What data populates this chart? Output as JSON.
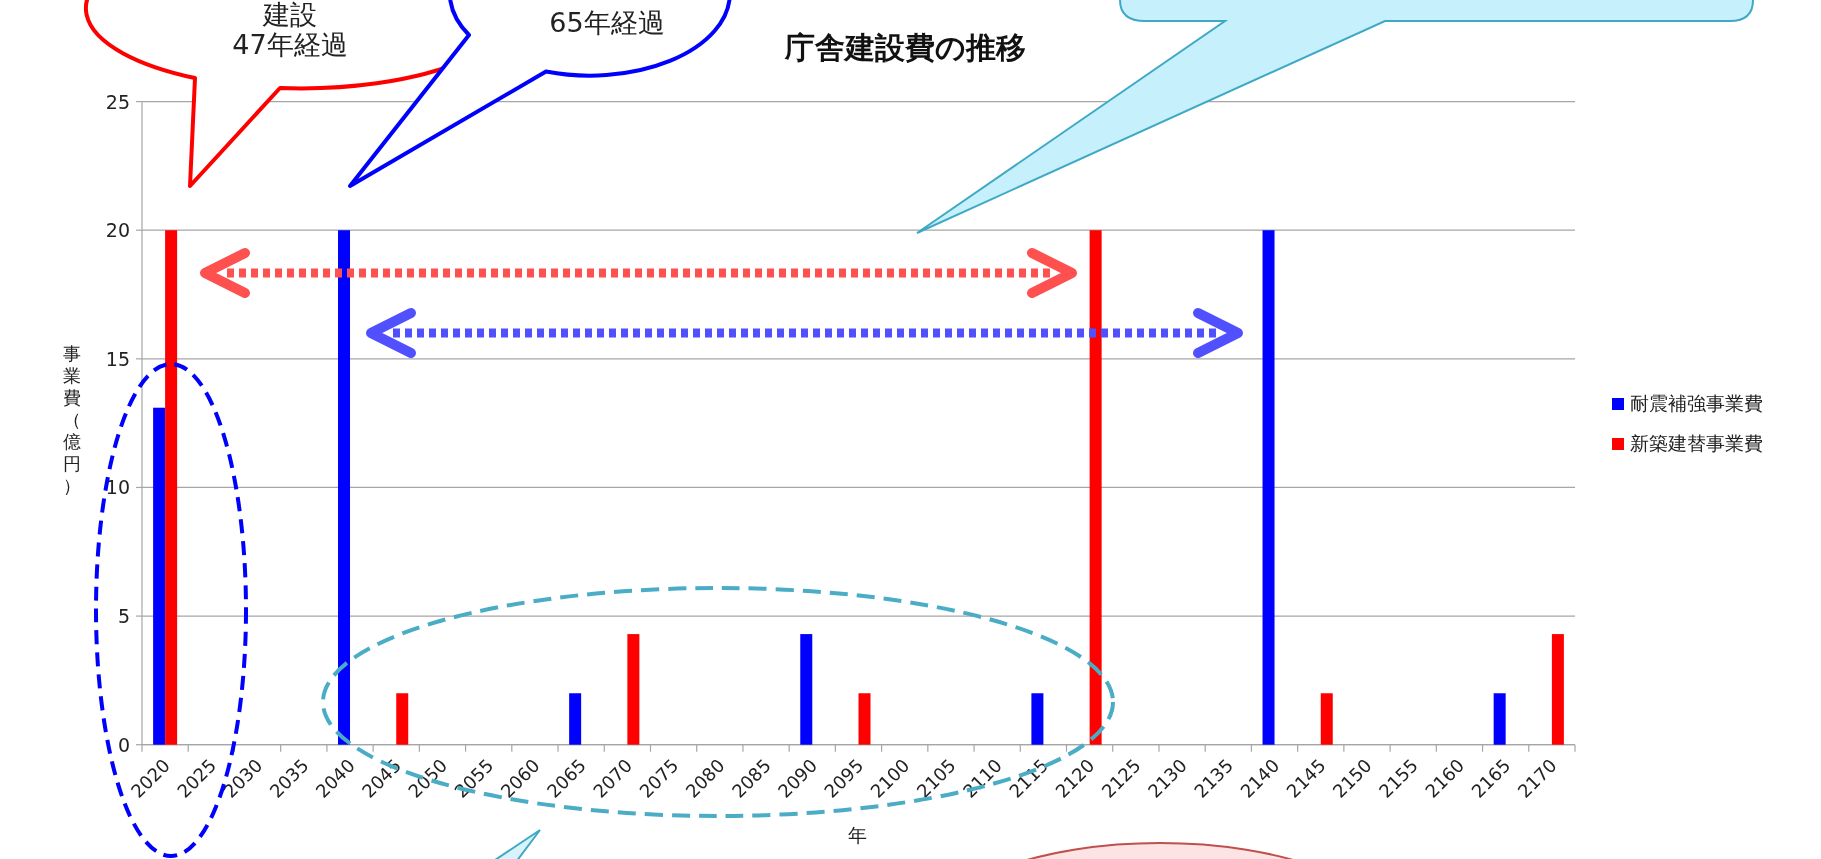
{
  "chart_data": {
    "type": "bar",
    "title": "庁舎建設費の推移",
    "xlabel": "年",
    "ylabel": "事業費（億円）",
    "categories": [
      "2020",
      "2025",
      "2030",
      "2035",
      "2040",
      "2045",
      "2050",
      "2055",
      "2060",
      "2065",
      "2070",
      "2075",
      "2080",
      "2085",
      "2090",
      "2095",
      "2100",
      "2105",
      "2110",
      "2115",
      "2120",
      "2125",
      "2130",
      "2135",
      "2140",
      "2145",
      "2150",
      "2155",
      "2160",
      "2165",
      "2170"
    ],
    "series": [
      {
        "name": "耐震補強事業費",
        "color": "#0000ff",
        "values": [
          13.1,
          null,
          null,
          null,
          20,
          null,
          null,
          null,
          null,
          2,
          null,
          null,
          null,
          null,
          4.3,
          null,
          null,
          null,
          null,
          2,
          null,
          null,
          null,
          null,
          20,
          null,
          null,
          null,
          null,
          2,
          null
        ]
      },
      {
        "name": "新築建替事業費",
        "color": "#ff0000",
        "values": [
          20,
          null,
          null,
          null,
          null,
          2,
          null,
          null,
          null,
          null,
          4.3,
          null,
          null,
          null,
          null,
          2,
          null,
          null,
          null,
          null,
          20,
          null,
          null,
          null,
          null,
          2,
          null,
          null,
          null,
          null,
          4.3
        ]
      }
    ],
    "ylim": [
      0,
      25
    ],
    "yticks": [
      0,
      5,
      10,
      15,
      20,
      25
    ],
    "grid": "y",
    "legend": "right",
    "annotations": [
      "建設",
      "47年経過",
      "65年経過"
    ]
  }
}
